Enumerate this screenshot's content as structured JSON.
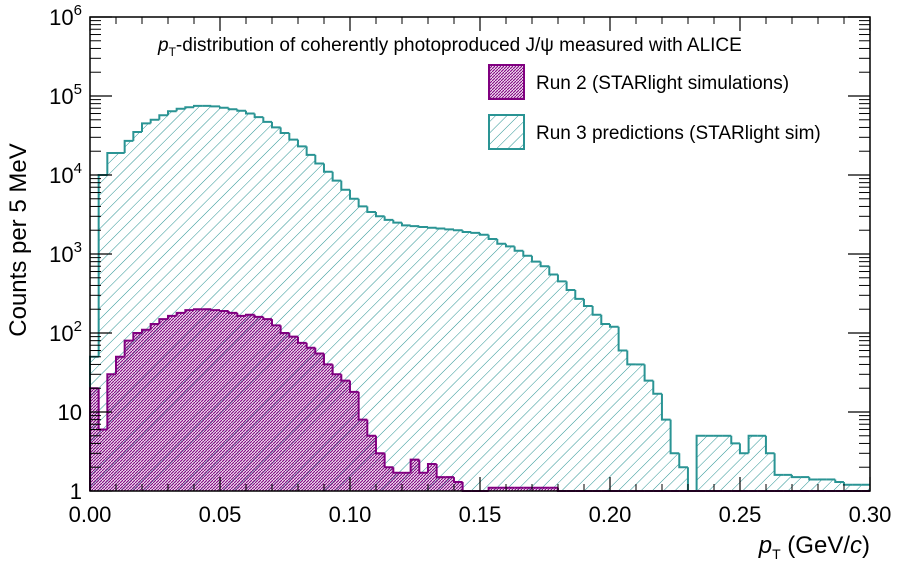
{
  "colors": {
    "run2": "#800080",
    "run3": "#2a9494",
    "axis": "#000000",
    "background": "#ffffff"
  },
  "chart_data": {
    "type": "histogram",
    "title_prefix": "p",
    "title_sub": "T",
    "title_rest": "-distribution of coherently photoproduced J/ψ measured with ALICE",
    "xlabel_main": "p",
    "xlabel_sub": "T",
    "xlabel_unit_open": " (GeV/",
    "xlabel_unit_c": "c",
    "xlabel_unit_close": ")",
    "ylabel": "Counts per 5 MeV",
    "xlim": [
      0.0,
      0.3
    ],
    "ylim": [
      1,
      1000000
    ],
    "yscale": "log",
    "x_ticks": [
      "0.00",
      "0.05",
      "0.10",
      "0.15",
      "0.20",
      "0.25",
      "0.30"
    ],
    "y_ticks": [
      {
        "base": "1",
        "exp": ""
      },
      {
        "base": "10",
        "exp": ""
      },
      {
        "base": "10",
        "exp": "2"
      },
      {
        "base": "10",
        "exp": "3"
      },
      {
        "base": "10",
        "exp": "4"
      },
      {
        "base": "10",
        "exp": "5"
      },
      {
        "base": "10",
        "exp": "6"
      }
    ],
    "legend_position": "top-right",
    "bin_width": 0.003333,
    "series": [
      {
        "name": "Run 3 predictions (STARlight sim)",
        "color": "#2a9494",
        "values": [
          50,
          10000,
          19000,
          19000,
          27000,
          35000,
          45000,
          50000,
          57000,
          64000,
          69000,
          72000,
          75000,
          75000,
          74000,
          71000,
          68000,
          65000,
          60000,
          54000,
          47000,
          40000,
          34000,
          28000,
          23000,
          18000,
          14000,
          11000,
          8500,
          6500,
          5000,
          4000,
          3400,
          3000,
          2700,
          2500,
          2300,
          2250,
          2200,
          2150,
          2100,
          2050,
          2000,
          1900,
          1850,
          1750,
          1550,
          1350,
          1250,
          1100,
          950,
          800,
          700,
          550,
          450,
          350,
          270,
          220,
          170,
          130,
          120,
          60,
          40,
          40,
          25,
          17,
          8,
          3,
          2,
          1,
          5,
          5,
          5,
          5,
          4,
          3,
          5,
          5,
          3,
          1.6,
          1.6,
          1.5,
          1.5,
          1.4,
          1.4,
          1.4,
          1.3,
          1.2,
          1.2,
          1.2
        ]
      },
      {
        "name": "Run 2 (STARlight simulations)",
        "color": "#800080",
        "values": [
          20,
          6,
          30,
          50,
          80,
          100,
          110,
          130,
          150,
          165,
          180,
          195,
          200,
          200,
          195,
          190,
          180,
          165,
          170,
          160,
          150,
          125,
          100,
          90,
          75,
          65,
          55,
          40,
          30,
          25,
          18,
          8,
          5,
          3,
          2,
          1.7,
          1.7,
          2.5,
          1.7,
          2.2,
          1.5,
          1.5,
          1.3,
          1.0,
          1.0,
          1.0,
          1.1,
          1.1,
          1.1,
          1.1,
          1.1,
          1.1,
          1.1,
          1.1,
          1.0,
          1.0,
          1.0,
          1.0,
          1.0,
          1.0,
          1.0,
          1.0,
          1.0,
          1.0,
          1.0,
          1.0,
          1.0,
          1.0,
          1.0,
          1.0,
          1.0,
          1.0,
          1.0,
          1.0,
          1.0,
          1.0,
          1.0,
          1.0,
          1.0,
          1.0,
          1.0,
          1.0,
          1.0,
          1.0,
          1.0,
          1.0,
          1.0,
          1.0,
          1.0,
          1.0
        ]
      }
    ]
  }
}
